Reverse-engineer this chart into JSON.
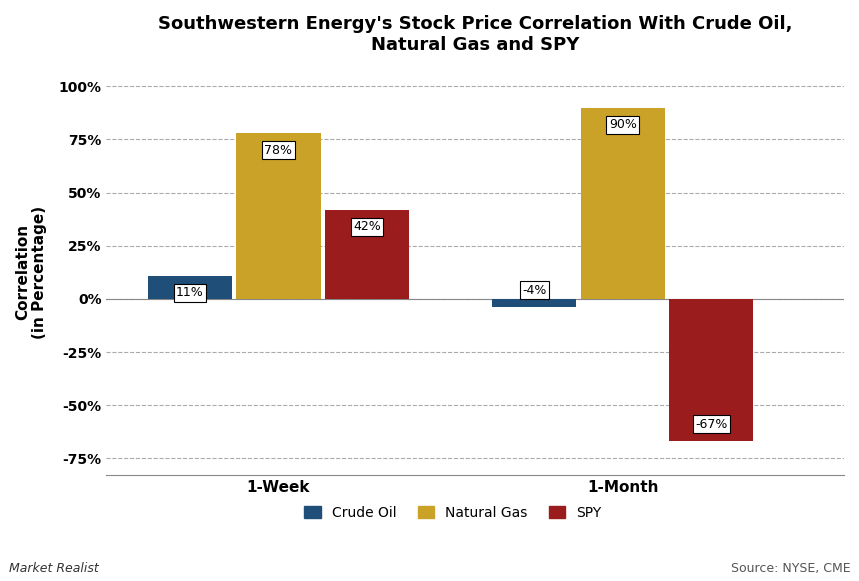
{
  "title": "Southwestern Energy's Stock Price Correlation With Crude Oil,\nNatural Gas and SPY",
  "ylabel": "Correlation\n(in Percentage)",
  "groups": [
    "1-Week",
    "1-Month"
  ],
  "series": [
    "Crude Oil",
    "Natural Gas",
    "SPY"
  ],
  "values": {
    "Crude Oil": [
      11,
      -4
    ],
    "Natural Gas": [
      78,
      90
    ],
    "SPY": [
      42,
      -67
    ]
  },
  "colors": {
    "Crude Oil": "#1f4e79",
    "Natural Gas": "#c9a227",
    "SPY": "#9b1c1c"
  },
  "ylim": [
    -83,
    108
  ],
  "yticks": [
    -75,
    -50,
    -25,
    0,
    25,
    50,
    75,
    100
  ],
  "ytick_labels": [
    "-75%",
    "-50%",
    "-25%",
    "0%",
    "25%",
    "50%",
    "75%",
    "100%"
  ],
  "bar_width": 0.18,
  "background_color": "#ffffff",
  "grid_color": "#aaaaaa",
  "source_text": "Source: NYSE, CME",
  "watermark_text": "Market Realist",
  "label_fontsize": 9,
  "title_fontsize": 13,
  "group_centers": [
    0.3,
    1.0
  ],
  "xlim": [
    -0.05,
    1.45
  ]
}
